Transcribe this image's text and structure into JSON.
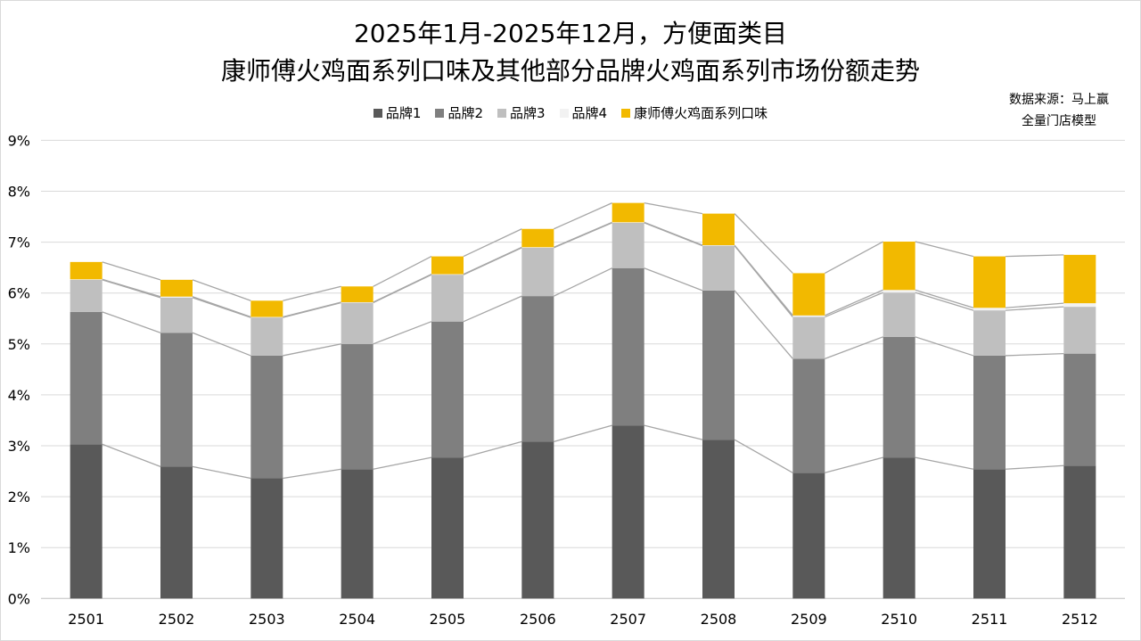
{
  "chart_data": {
    "type": "bar",
    "stacked": true,
    "title": [
      "2025年1月-2025年12月，方便面类目",
      "康师傅火鸡面系列口味及其他部分品牌火鸡面系列市场份额走势"
    ],
    "source": [
      "数据来源：马上赢",
      "全量门店模型"
    ],
    "categories": [
      "2501",
      "2502",
      "2503",
      "2504",
      "2505",
      "2506",
      "2507",
      "2508",
      "2509",
      "2510",
      "2511",
      "2512"
    ],
    "ylim": [
      0,
      9
    ],
    "yticks": [
      "0%",
      "1%",
      "2%",
      "3%",
      "4%",
      "5%",
      "6%",
      "7%",
      "8%",
      "9%"
    ],
    "grid": true,
    "legend_position": "top",
    "series_lines": true,
    "series": [
      {
        "name": "品牌1",
        "color": "#595959",
        "values": [
          3.03,
          2.59,
          2.36,
          2.54,
          2.77,
          3.08,
          3.4,
          3.12,
          2.47,
          2.77,
          2.54,
          2.61
        ]
      },
      {
        "name": "品牌2",
        "color": "#7f7f7f",
        "values": [
          2.6,
          2.63,
          2.41,
          2.46,
          2.67,
          2.86,
          3.09,
          2.93,
          2.24,
          2.37,
          2.23,
          2.2
        ]
      },
      {
        "name": "品牌3",
        "color": "#bfbfbf",
        "values": [
          0.63,
          0.69,
          0.75,
          0.81,
          0.92,
          0.95,
          0.89,
          0.88,
          0.82,
          0.87,
          0.89,
          0.92
        ]
      },
      {
        "name": "品牌4",
        "color": "#f2f2f2",
        "values": [
          0.01,
          0.02,
          0.01,
          0.01,
          0.01,
          0.01,
          0.01,
          0.01,
          0.03,
          0.05,
          0.05,
          0.07
        ]
      },
      {
        "name": "康师傅火鸡面系列口味",
        "color": "#f2b900",
        "values": [
          0.34,
          0.33,
          0.32,
          0.31,
          0.35,
          0.36,
          0.38,
          0.62,
          0.83,
          0.95,
          1.01,
          0.95
        ]
      }
    ]
  }
}
